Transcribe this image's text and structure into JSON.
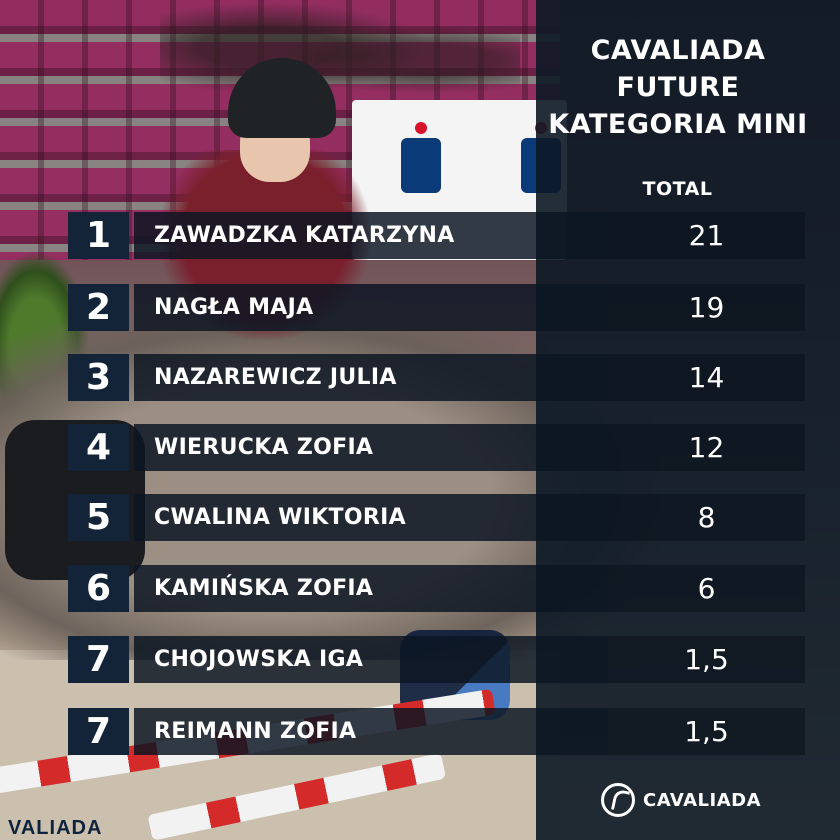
{
  "header": {
    "line1": "CAVALIADA",
    "line2": "FUTURE",
    "line3": "KATEGORIA MINI",
    "total_label": "TOTAL"
  },
  "rows": [
    {
      "rank": "1",
      "name": "ZAWADZKA KATARZYNA",
      "score": "21"
    },
    {
      "rank": "2",
      "name": "NAGŁA MAJA",
      "score": "19"
    },
    {
      "rank": "3",
      "name": "NAZAREWICZ JULIA",
      "score": "14"
    },
    {
      "rank": "4",
      "name": "WIERUCKA ZOFIA",
      "score": "12"
    },
    {
      "rank": "5",
      "name": "CWALINA WIKTORIA",
      "score": "8"
    },
    {
      "rank": "6",
      "name": "KAMIŃSKA ZOFIA",
      "score": "6"
    },
    {
      "rank": "7",
      "name": "CHOJOWSKA IGA",
      "score": "1,5"
    },
    {
      "rank": "7",
      "name": "REIMANN ZOFIA",
      "score": "1,5"
    }
  ],
  "brand": {
    "logo_text": "CAVALIADA",
    "background_text": "VALIADA"
  },
  "colors": {
    "panel": "#0c1825",
    "rank_cell": "#132438",
    "text": "#ffffff"
  },
  "icons": {
    "logo": "cavaliada-horse-logo",
    "sponsor": "pko-logo"
  }
}
